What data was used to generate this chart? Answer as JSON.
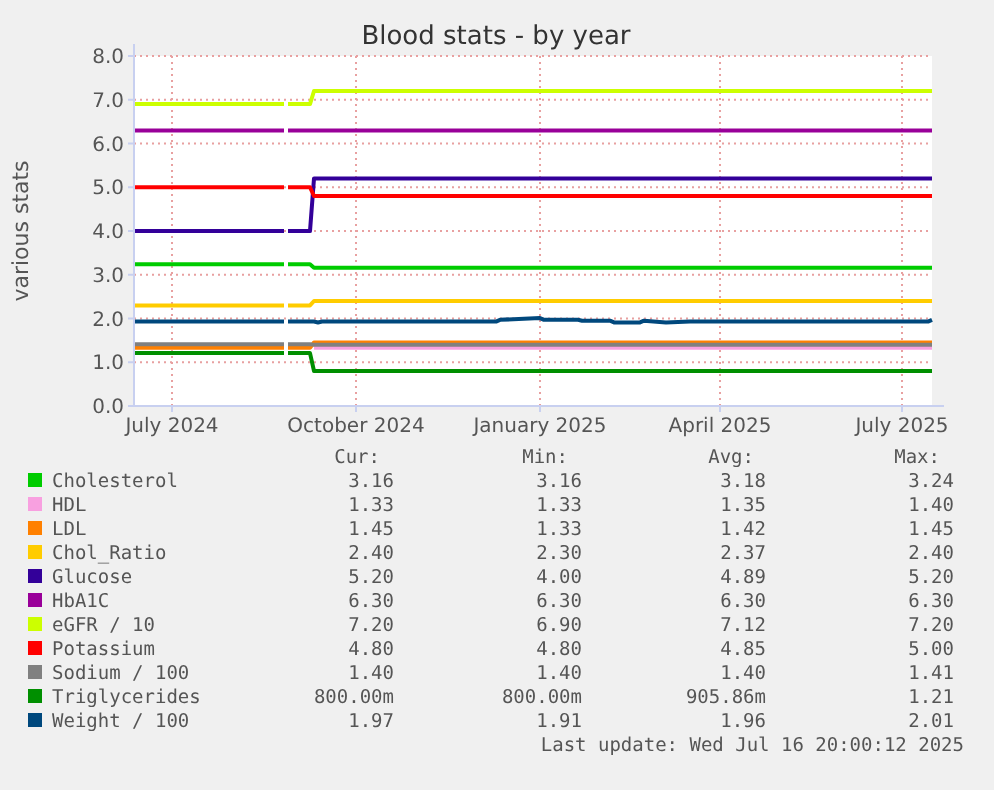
{
  "chart_data": {
    "type": "line",
    "title": "Blood stats - by year",
    "ylabel": "various stats",
    "xlim": [
      "2024-06-12",
      "2025-07-16"
    ],
    "xticks": [
      {
        "value": "2024-07-01",
        "label": "July 2024"
      },
      {
        "value": "2024-10-01",
        "label": "October 2024"
      },
      {
        "value": "2025-01-01",
        "label": "January 2025"
      },
      {
        "value": "2025-04-01",
        "label": "April 2025"
      },
      {
        "value": "2025-07-01",
        "label": "July 2025"
      }
    ],
    "ylim": [
      0,
      8
    ],
    "yticks": [
      {
        "value": 0,
        "label": "0.0"
      },
      {
        "value": 1,
        "label": "1.0"
      },
      {
        "value": 2,
        "label": "2.0"
      },
      {
        "value": 3,
        "label": "3.0"
      },
      {
        "value": 4,
        "label": "4.0"
      },
      {
        "value": 5,
        "label": "5.0"
      },
      {
        "value": 6,
        "label": "6.0"
      },
      {
        "value": 7,
        "label": "7.0"
      },
      {
        "value": 8,
        "label": "8.0"
      }
    ],
    "grid": true,
    "legend": "bottom",
    "series": [
      {
        "name": "Cholesterol",
        "color": "#00cc00",
        "x": [
          "2024-06-12",
          "2024-08-26",
          "2024-08-27",
          "2024-08-28",
          "2024-09-08",
          "2024-09-10",
          "2025-07-16"
        ],
        "values": [
          3.24,
          3.24,
          null,
          3.24,
          3.24,
          3.16,
          3.16
        ]
      },
      {
        "name": "HDL",
        "color": "#f8a0e0",
        "x": [
          "2024-09-10",
          "2025-07-16"
        ],
        "values": [
          1.33,
          1.33
        ]
      },
      {
        "name": "LDL",
        "color": "#ff8000",
        "x": [
          "2024-06-12",
          "2024-08-26",
          "2024-08-27",
          "2024-08-28",
          "2024-09-08",
          "2024-09-10",
          "2025-07-16"
        ],
        "values": [
          1.33,
          1.33,
          null,
          1.33,
          1.33,
          1.45,
          1.45
        ]
      },
      {
        "name": "Chol_Ratio",
        "color": "#ffcc00",
        "x": [
          "2024-06-12",
          "2024-08-26",
          "2024-08-27",
          "2024-08-28",
          "2024-09-08",
          "2024-09-10",
          "2025-07-16"
        ],
        "values": [
          2.3,
          2.3,
          null,
          2.3,
          2.3,
          2.4,
          2.4
        ]
      },
      {
        "name": "Glucose",
        "color": "#330099",
        "x": [
          "2024-06-12",
          "2024-08-26",
          "2024-08-27",
          "2024-08-28",
          "2024-09-08",
          "2024-09-10",
          "2025-07-16"
        ],
        "values": [
          4.0,
          4.0,
          null,
          4.0,
          4.0,
          5.2,
          5.2
        ]
      },
      {
        "name": "HbA1C",
        "color": "#990099",
        "x": [
          "2024-06-12",
          "2024-08-26",
          "2024-08-27",
          "2024-08-28",
          "2025-07-16"
        ],
        "values": [
          6.3,
          6.3,
          null,
          6.3,
          6.3
        ]
      },
      {
        "name": "eGFR / 10",
        "color": "#ccff00",
        "x": [
          "2024-06-12",
          "2024-08-26",
          "2024-08-27",
          "2024-08-28",
          "2024-09-08",
          "2024-09-10",
          "2025-07-16"
        ],
        "values": [
          6.9,
          6.9,
          null,
          6.9,
          6.9,
          7.2,
          7.2
        ]
      },
      {
        "name": "Potassium",
        "color": "#ff0000",
        "x": [
          "2024-06-12",
          "2024-08-26",
          "2024-08-27",
          "2024-08-28",
          "2024-09-08",
          "2024-09-10",
          "2025-07-16"
        ],
        "values": [
          5.0,
          5.0,
          null,
          5.0,
          5.0,
          4.8,
          4.8
        ]
      },
      {
        "name": "Sodium / 100",
        "color": "#808080",
        "x": [
          "2024-06-12",
          "2024-08-26",
          "2024-08-27",
          "2024-08-28",
          "2024-09-08",
          "2024-09-10",
          "2025-07-16"
        ],
        "values": [
          1.41,
          1.41,
          null,
          1.41,
          1.41,
          1.4,
          1.4
        ]
      },
      {
        "name": "Triglycerides",
        "color": "#008f00",
        "x": [
          "2024-06-12",
          "2024-08-26",
          "2024-08-27",
          "2024-08-28",
          "2024-09-08",
          "2024-09-10",
          "2025-07-16"
        ],
        "values": [
          1.21,
          1.21,
          null,
          1.21,
          1.21,
          0.8,
          0.8
        ]
      },
      {
        "name": "Weight / 100",
        "color": "#00487d",
        "x": [
          "2024-06-12",
          "2024-08-26",
          "2024-08-27",
          "2024-08-28",
          "2024-09-10",
          "2024-09-12",
          "2024-09-14",
          "2024-12-10",
          "2024-12-12",
          "2025-01-01",
          "2025-01-03",
          "2025-01-20",
          "2025-01-22",
          "2025-02-05",
          "2025-02-07",
          "2025-02-20",
          "2025-02-22",
          "2025-03-05",
          "2025-03-17",
          "2025-07-14",
          "2025-07-16"
        ],
        "values": [
          1.93,
          1.93,
          null,
          1.93,
          1.93,
          1.91,
          1.93,
          1.93,
          1.97,
          2.01,
          1.97,
          1.97,
          1.95,
          1.95,
          1.91,
          1.91,
          1.95,
          1.91,
          1.93,
          1.93,
          1.97
        ]
      }
    ],
    "annotations": [
      "Cur:",
      "Min:",
      "Avg:",
      "Max:",
      "3.16",
      "3.16",
      "3.18",
      "3.24",
      "1.33",
      "1.33",
      "1.35",
      "1.40",
      "1.45",
      "1.33",
      "1.42",
      "1.45",
      "2.40",
      "2.30",
      "2.37",
      "2.40",
      "5.20",
      "4.00",
      "4.89",
      "5.20",
      "6.30",
      "6.30",
      "6.30",
      "6.30",
      "7.20",
      "6.90",
      "7.12",
      "7.20",
      "4.80",
      "4.80",
      "4.85",
      "5.00",
      "1.40",
      "1.40",
      "1.40",
      "1.41",
      "800.00m",
      "800.00m",
      "905.86m",
      "1.21",
      "1.97",
      "1.91",
      "1.96",
      "2.01",
      "Last update: Wed Jul 16 20:00:12 2025"
    ]
  }
}
